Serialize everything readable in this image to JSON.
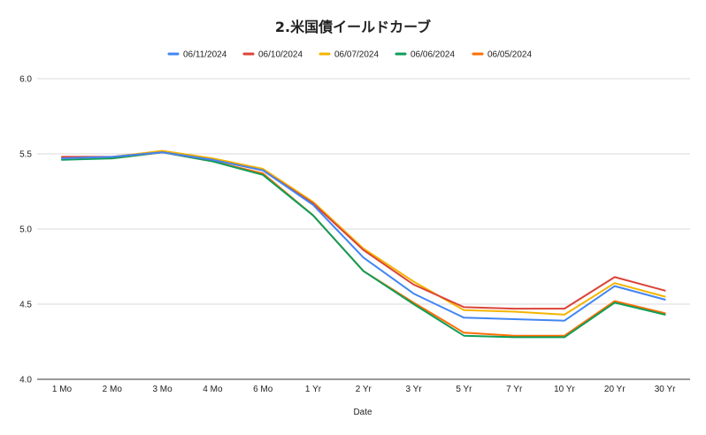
{
  "chart_data": {
    "type": "line",
    "title": "2.米国債イールドカーブ",
    "xlabel": "Date",
    "ylabel": "",
    "categories": [
      "1 Mo",
      "2 Mo",
      "3 Mo",
      "4 Mo",
      "6 Mo",
      "1 Yr",
      "2 Yr",
      "3 Yr",
      "5 Yr",
      "7 Yr",
      "10 Yr",
      "20 Yr",
      "30 Yr"
    ],
    "ylim": [
      4.0,
      6.0
    ],
    "yticks": [
      "4.0",
      "4.5",
      "5.0",
      "5.5",
      "6.0"
    ],
    "grid": true,
    "legend_position": "top",
    "series": [
      {
        "name": "06/11/2024",
        "color": "#4285f4",
        "values": [
          5.47,
          5.48,
          5.51,
          5.46,
          5.39,
          5.16,
          4.81,
          4.57,
          4.41,
          4.4,
          4.39,
          4.62,
          4.53
        ]
      },
      {
        "name": "06/10/2024",
        "color": "#db4437",
        "values": [
          5.48,
          5.48,
          5.51,
          5.46,
          5.39,
          5.17,
          4.86,
          4.63,
          4.48,
          4.47,
          4.47,
          4.68,
          4.59
        ]
      },
      {
        "name": "06/07/2024",
        "color": "#f4b400",
        "values": [
          5.47,
          5.48,
          5.52,
          5.47,
          5.4,
          5.18,
          4.87,
          4.65,
          4.46,
          4.45,
          4.43,
          4.64,
          4.55
        ]
      },
      {
        "name": "06/06/2024",
        "color": "#0f9d58",
        "values": [
          5.46,
          5.47,
          5.51,
          5.45,
          5.36,
          5.09,
          4.72,
          4.5,
          4.29,
          4.28,
          4.28,
          4.51,
          4.43
        ]
      },
      {
        "name": "06/05/2024",
        "color": "#ff6d00",
        "values": [
          5.47,
          5.47,
          5.51,
          5.45,
          5.37,
          5.09,
          4.72,
          4.51,
          4.31,
          4.29,
          4.29,
          4.52,
          4.44
        ]
      }
    ]
  }
}
